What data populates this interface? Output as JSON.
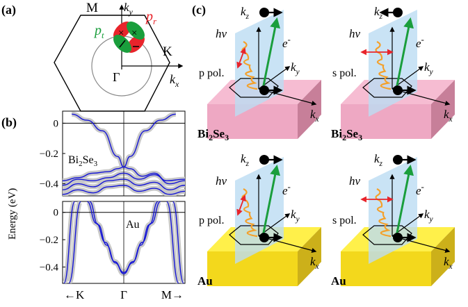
{
  "panel_a": {
    "label": "(a)",
    "M": "M",
    "K": "K",
    "Gamma": "Γ",
    "kx": "k",
    "kx_sub": "x",
    "ky": "k",
    "ky_sub": "y",
    "pt": "p",
    "pt_sub": "t",
    "pr": "p",
    "pr_sub": "r",
    "colors": {
      "pt": "#1a9e3c",
      "pr": "#e8242b"
    }
  },
  "panel_b": {
    "label": "(b)",
    "ylabel": "Energy (eV)",
    "bi_label": "Bi",
    "bi_sub1": "2",
    "bi_mid": "Se",
    "bi_sub2": "3",
    "au_label": "Au",
    "xticks": [
      "←K",
      "Γ",
      "M→"
    ]
  },
  "panel_c": {
    "label": "(c)",
    "kz": "k",
    "kz_sub": "z",
    "ky": "k",
    "ky_sub": "y",
    "kx": "k",
    "kx_sub": "x",
    "hv": "hν",
    "electron": "e",
    "electron_sup": "-",
    "ppol": "p pol.",
    "spol": "s pol.",
    "bi_name": "Bi",
    "bi_sub1": "2",
    "bi_mid": "Se",
    "bi_sub2": "3",
    "au_name": "Au",
    "colors": {
      "bi_top": "#f6bcd2",
      "bi_front": "#eea8c3",
      "bi_side": "#c77f99",
      "au_top": "#fff04a",
      "au_front": "#f3d81c",
      "au_side": "#ccb01a",
      "plane": "#bcdcf2",
      "arrow": "#1a9e3c",
      "pol": "#e8242b",
      "wave": "#f4a02a"
    }
  },
  "chart_data": [
    {
      "type": "line",
      "title": "Bi2Se3",
      "ylabel": "Energy (eV)",
      "ylim": [
        -0.48,
        0.08
      ],
      "yticks": [
        0,
        -0.2,
        -0.4
      ],
      "xticks": [
        "←K",
        "Γ",
        "M→"
      ],
      "xlim": [
        -1,
        1
      ],
      "series": [
        {
          "x": [
            -0.85,
            -0.6,
            -0.35,
            -0.1,
            0,
            0.1,
            0.35,
            0.6,
            0.85
          ],
          "y": [
            0.06,
            0.02,
            -0.05,
            -0.22,
            -0.29,
            -0.22,
            -0.05,
            0.02,
            0.06
          ]
        },
        {
          "x": [
            -1,
            -0.75,
            -0.5,
            -0.25,
            -0.1,
            0
          ],
          "y": [
            -0.38,
            -0.36,
            -0.33,
            -0.32,
            -0.3,
            -0.29
          ]
        },
        {
          "x": [
            0,
            0.1,
            0.3,
            0.5,
            0.7,
            1
          ],
          "y": [
            -0.29,
            -0.3,
            -0.35,
            -0.33,
            -0.38,
            -0.37
          ]
        },
        {
          "x": [
            -1,
            -0.75,
            -0.5,
            -0.25,
            0,
            0.25,
            0.5,
            0.75,
            1
          ],
          "y": [
            -0.41,
            -0.37,
            -0.38,
            -0.36,
            -0.33,
            -0.37,
            -0.34,
            -0.4,
            -0.38
          ]
        },
        {
          "x": [
            -1,
            -0.75,
            -0.5,
            -0.25,
            0,
            0.25,
            0.5,
            0.75,
            1
          ],
          "y": [
            -0.44,
            -0.4,
            -0.42,
            -0.38,
            -0.37,
            -0.41,
            -0.39,
            -0.44,
            -0.41
          ]
        },
        {
          "x": [
            -1,
            -0.75,
            -0.5,
            -0.25,
            0,
            0.25,
            0.5,
            0.75,
            1
          ],
          "y": [
            -0.47,
            -0.44,
            -0.46,
            -0.42,
            -0.41,
            -0.45,
            -0.43,
            -0.47,
            -0.45
          ]
        }
      ]
    },
    {
      "type": "line",
      "title": "Au",
      "ylabel": "Energy (eV)",
      "ylim": [
        -0.52,
        0.08
      ],
      "yticks": [
        0,
        -0.2,
        -0.4
      ],
      "xticks": [
        "←K",
        "Γ",
        "M→"
      ],
      "xlim": [
        -1,
        1
      ],
      "series": [
        {
          "x": [
            -0.6,
            -0.45,
            -0.3,
            -0.15,
            0,
            0.15,
            0.3,
            0.45,
            0.6
          ],
          "y": [
            0.08,
            -0.08,
            -0.22,
            -0.36,
            -0.44,
            -0.36,
            -0.22,
            -0.08,
            0.08
          ]
        },
        {
          "x": [
            -0.56,
            -0.42,
            -0.28,
            -0.14,
            0,
            0.14,
            0.28,
            0.42,
            0.56
          ],
          "y": [
            0.08,
            -0.09,
            -0.24,
            -0.37,
            -0.45,
            -0.37,
            -0.24,
            -0.09,
            0.08
          ]
        },
        {
          "x": [
            -0.98,
            -0.8
          ],
          "y": [
            -0.52,
            0.08
          ]
        },
        {
          "x": [
            -0.9,
            -0.7
          ],
          "y": [
            -0.52,
            0.08
          ]
        },
        {
          "x": [
            0.8,
            0.98
          ],
          "y": [
            0.08,
            -0.52
          ]
        },
        {
          "x": [
            0.7,
            0.9
          ],
          "y": [
            0.08,
            -0.52
          ]
        }
      ]
    }
  ]
}
